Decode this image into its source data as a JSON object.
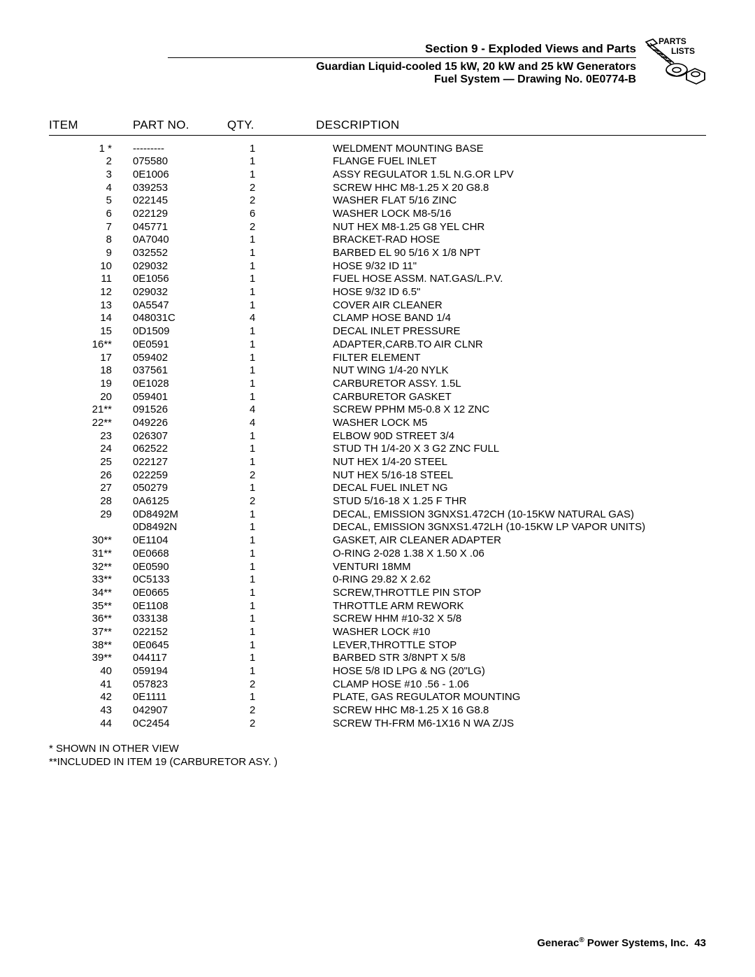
{
  "header": {
    "section_title": "Section 9 - Exploded Views and Parts",
    "sub1": "Guardian Liquid-cooled 15 kW, 20 kW and 25 kW Generators",
    "sub2": "Fuel System — Drawing No. 0E0774-B",
    "logo_label_1": "PARTS",
    "logo_label_2": "LISTS"
  },
  "table": {
    "headers": {
      "item": "ITEM",
      "part": "PART NO.",
      "qty": "QTY.",
      "desc": "DESCRIPTION"
    },
    "rows": [
      {
        "item": "1 *",
        "part": "---------",
        "qty": "1",
        "desc": "WELDMENT MOUNTING BASE"
      },
      {
        "item": "2",
        "part": "075580",
        "qty": "1",
        "desc": "FLANGE FUEL INLET"
      },
      {
        "item": "3",
        "part": "0E1006",
        "qty": "1",
        "desc": "ASSY REGULATOR 1.5L N.G.OR LPV"
      },
      {
        "item": "4",
        "part": "039253",
        "qty": "2",
        "desc": "SCREW HHC M8-1.25 X 20 G8.8"
      },
      {
        "item": "5",
        "part": "022145",
        "qty": "2",
        "desc": "WASHER FLAT 5/16 ZINC"
      },
      {
        "item": "6",
        "part": "022129",
        "qty": "6",
        "desc": "WASHER LOCK M8-5/16"
      },
      {
        "item": "7",
        "part": "045771",
        "qty": "2",
        "desc": "NUT HEX M8-1.25 G8 YEL CHR"
      },
      {
        "item": "8",
        "part": "0A7040",
        "qty": "1",
        "desc": "BRACKET-RAD HOSE"
      },
      {
        "item": "9",
        "part": "032552",
        "qty": "1",
        "desc": "BARBED EL 90 5/16 X 1/8 NPT"
      },
      {
        "item": "10",
        "part": "029032",
        "qty": "1",
        "desc": "HOSE 9/32 ID 11\""
      },
      {
        "item": "11",
        "part": "0E1056",
        "qty": "1",
        "desc": "FUEL HOSE ASSM. NAT.GAS/L.P.V."
      },
      {
        "item": "12",
        "part": "029032",
        "qty": "1",
        "desc": "HOSE 9/32 ID 6.5\""
      },
      {
        "item": "13",
        "part": "0A5547",
        "qty": "1",
        "desc": "COVER AIR CLEANER"
      },
      {
        "item": "14",
        "part": "048031C",
        "qty": "4",
        "desc": "CLAMP HOSE BAND 1/4"
      },
      {
        "item": "15",
        "part": "0D1509",
        "qty": "1",
        "desc": "DECAL INLET PRESSURE"
      },
      {
        "item": "16**",
        "part": "0E0591",
        "qty": "1",
        "desc": "ADAPTER,CARB.TO AIR CLNR"
      },
      {
        "item": "17",
        "part": "059402",
        "qty": "1",
        "desc": "FILTER ELEMENT"
      },
      {
        "item": "18",
        "part": "037561",
        "qty": "1",
        "desc": "NUT WING 1/4-20 NYLK"
      },
      {
        "item": "19",
        "part": "0E1028",
        "qty": "1",
        "desc": "CARBURETOR ASSY. 1.5L"
      },
      {
        "item": "20",
        "part": "059401",
        "qty": "1",
        "desc": "CARBURETOR GASKET"
      },
      {
        "item": "21**",
        "part": "091526",
        "qty": "4",
        "desc": "SCREW PPHM M5-0.8 X 12 ZNC"
      },
      {
        "item": "22**",
        "part": "049226",
        "qty": "4",
        "desc": "WASHER LOCK M5"
      },
      {
        "item": "23",
        "part": "026307",
        "qty": "1",
        "desc": "ELBOW 90D STREET 3/4"
      },
      {
        "item": "24",
        "part": "062522",
        "qty": "1",
        "desc": "STUD TH 1/4-20 X 3 G2 ZNC FULL"
      },
      {
        "item": "25",
        "part": "022127",
        "qty": "1",
        "desc": "NUT HEX 1/4-20 STEEL"
      },
      {
        "item": "26",
        "part": "022259",
        "qty": "2",
        "desc": "NUT HEX 5/16-18 STEEL"
      },
      {
        "item": "27",
        "part": "050279",
        "qty": "1",
        "desc": "DECAL FUEL INLET NG"
      },
      {
        "item": "28",
        "part": "0A6125",
        "qty": "2",
        "desc": "STUD 5/16-18 X 1.25 F THR"
      },
      {
        "item": "29",
        "part": "0D8492M",
        "qty": "1",
        "desc": "DECAL, EMISSION 3GNXS1.472CH (10-15KW NATURAL GAS)"
      },
      {
        "item": "",
        "part": "0D8492N",
        "qty": "1",
        "desc": "DECAL, EMISSION 3GNXS1.472LH (10-15KW LP VAPOR UNITS)"
      },
      {
        "item": "30**",
        "part": "0E1104",
        "qty": "1",
        "desc": "GASKET, AIR CLEANER ADAPTER"
      },
      {
        "item": "31**",
        "part": "0E0668",
        "qty": "1",
        "desc": "O-RING 2-028 1.38 X 1.50 X .06"
      },
      {
        "item": "32**",
        "part": "0E0590",
        "qty": "1",
        "desc": "VENTURI 18MM"
      },
      {
        "item": "33**",
        "part": "0C5133",
        "qty": "1",
        "desc": "0-RING 29.82 X 2.62"
      },
      {
        "item": "34**",
        "part": "0E0665",
        "qty": "1",
        "desc": "SCREW,THROTTLE PIN STOP"
      },
      {
        "item": "35**",
        "part": "0E1108",
        "qty": "1",
        "desc": "THROTTLE ARM REWORK"
      },
      {
        "item": "36**",
        "part": "033138",
        "qty": "1",
        "desc": "SCREW HHM #10-32 X 5/8"
      },
      {
        "item": "37**",
        "part": "022152",
        "qty": "1",
        "desc": "WASHER LOCK #10"
      },
      {
        "item": "38**",
        "part": "0E0645",
        "qty": "1",
        "desc": "LEVER,THROTTLE STOP"
      },
      {
        "item": "39**",
        "part": "044117",
        "qty": "1",
        "desc": "BARBED STR 3/8NPT X 5/8"
      },
      {
        "item": "40",
        "part": "059194",
        "qty": "1",
        "desc": "HOSE 5/8 ID LPG & NG (20\"LG)"
      },
      {
        "item": "41",
        "part": "057823",
        "qty": "2",
        "desc": "CLAMP HOSE #10 .56 - 1.06"
      },
      {
        "item": "42",
        "part": "0E1111",
        "qty": "1",
        "desc": "PLATE, GAS REGULATOR MOUNTING"
      },
      {
        "item": "43",
        "part": "042907",
        "qty": "2",
        "desc": "SCREW HHC M8-1.25 X 16 G8.8"
      },
      {
        "item": "44",
        "part": "0C2454",
        "qty": "2",
        "desc": "SCREW TH-FRM M6-1X16 N WA Z/JS"
      }
    ]
  },
  "notes": {
    "line1": "* SHOWN IN OTHER VIEW",
    "line2": "**INCLUDED IN ITEM 19 (CARBURETOR ASY. )"
  },
  "footer": {
    "brand": "Generac",
    "reg": "®",
    "company": " Power Systems, Inc.",
    "page": "43"
  }
}
